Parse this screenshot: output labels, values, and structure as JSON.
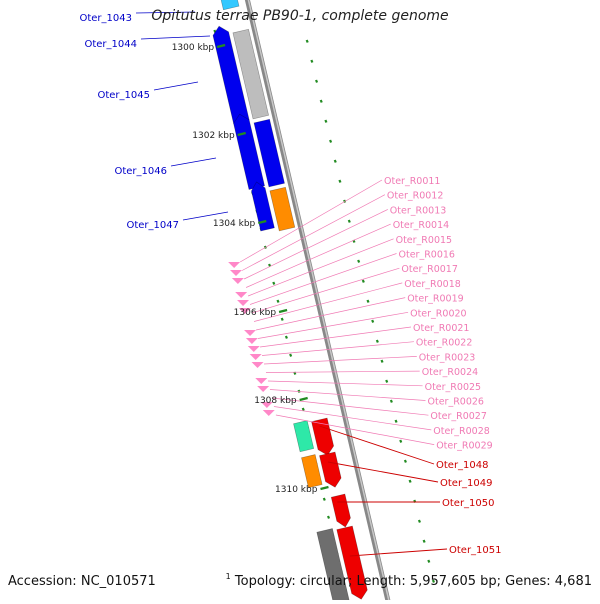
{
  "title": "Opitutus terrae PB90-1, complete genome",
  "footer": {
    "accession_label": "Accession:",
    "accession": "NC_010571",
    "note_marker": "1",
    "topology": "Topology: circular; Length: 5,957,605 bp; Genes: 4,681"
  },
  "colors": {
    "backbone": "#888888",
    "tick": "#228b22",
    "blue_label": "#0000c8",
    "pink_label": "#f07ab4",
    "red_label": "#cc0000",
    "blue_gene": "#0000ee",
    "light_blue_gene": "#33c8ff",
    "gray_gene": "#bdbdbd",
    "dark_gray_gene": "#6e6e6e",
    "orange_gene": "#ff8c00",
    "red_gene": "#ee0000",
    "aqua_gene": "#2ee8a8",
    "pink_gene": "#ff88c8"
  },
  "position_labels": [
    "1300 kbp",
    "1302 kbp",
    "1304 kbp",
    "1306 kbp",
    "1308 kbp",
    "1310 kbp"
  ],
  "left_genes": [
    {
      "name": "Oter_1043"
    },
    {
      "name": "Oter_1044"
    },
    {
      "name": "Oter_1045"
    },
    {
      "name": "Oter_1046"
    },
    {
      "name": "Oter_1047"
    }
  ],
  "rna_genes": [
    "Oter_R0011",
    "Oter_R0012",
    "Oter_R0013",
    "Oter_R0014",
    "Oter_R0015",
    "Oter_R0016",
    "Oter_R0017",
    "Oter_R0018",
    "Oter_R0019",
    "Oter_R0020",
    "Oter_R0021",
    "Oter_R0022",
    "Oter_R0023",
    "Oter_R0024",
    "Oter_R0025",
    "Oter_R0026",
    "Oter_R0027",
    "Oter_R0028",
    "Oter_R0029"
  ],
  "right_genes": [
    "Oter_1048",
    "Oter_1049",
    "Oter_1050",
    "Oter_1051"
  ]
}
